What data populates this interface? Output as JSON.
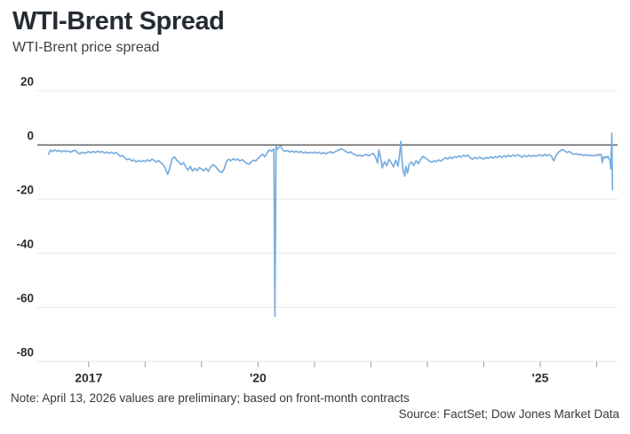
{
  "header": {
    "title": "WTI-Brent Spread",
    "subtitle": "WTI-Brent price spread"
  },
  "footer": {
    "note": "Note: April 13, 2026 values are preliminary; based on front-month contracts",
    "source": "Source: FactSet; Dow Jones Market Data"
  },
  "colors": {
    "line": "#7aadde",
    "grid": "#e7e7e7",
    "zero_line": "#1a1a1a",
    "axis_tick": "#9aa0a6",
    "tick_label": "#2e2e2e",
    "title": "#262b33"
  },
  "chart_data": {
    "type": "line",
    "title": "WTI-Brent Spread",
    "subtitle": "WTI-Brent price spread",
    "xlabel": "",
    "ylabel": "",
    "x_range": [
      2016.09,
      2026.37
    ],
    "y_range": [
      -80,
      20
    ],
    "grid": "horizontal",
    "legend": "none",
    "y_ticks": [
      20,
      0,
      -20,
      -40,
      -60,
      -80
    ],
    "y_tick_labels": [
      "20",
      "0",
      "-20",
      "-40",
      "-60",
      "-80"
    ],
    "x_ticks": [
      2017,
      2018,
      2019,
      2020,
      2021,
      2022,
      2023,
      2024,
      2025,
      2026
    ],
    "x_tick_labels": {
      "2017": "2017",
      "2020": "'20",
      "2025": "'25"
    },
    "zero_line_emphasized": true,
    "series": [
      {
        "name": "WTI-Brent price spread",
        "color": "#7aadde",
        "points": [
          [
            2016.29,
            -3.4
          ],
          [
            2016.32,
            -1.9
          ],
          [
            2016.36,
            -2.5
          ],
          [
            2016.4,
            -1.8
          ],
          [
            2016.44,
            -2.4
          ],
          [
            2016.48,
            -2.0
          ],
          [
            2016.52,
            -2.6
          ],
          [
            2016.56,
            -2.1
          ],
          [
            2016.6,
            -2.5
          ],
          [
            2016.64,
            -2.2
          ],
          [
            2016.68,
            -2.7
          ],
          [
            2016.72,
            -2.2
          ],
          [
            2016.76,
            -2.0
          ],
          [
            2016.8,
            -2.8
          ],
          [
            2016.84,
            -3.3
          ],
          [
            2016.88,
            -2.7
          ],
          [
            2016.92,
            -3.1
          ],
          [
            2016.96,
            -2.8
          ],
          [
            2017.0,
            -2.5
          ],
          [
            2017.04,
            -2.9
          ],
          [
            2017.08,
            -2.4
          ],
          [
            2017.12,
            -2.8
          ],
          [
            2017.16,
            -2.3
          ],
          [
            2017.2,
            -2.7
          ],
          [
            2017.24,
            -2.4
          ],
          [
            2017.28,
            -3.0
          ],
          [
            2017.32,
            -2.6
          ],
          [
            2017.36,
            -3.1
          ],
          [
            2017.4,
            -2.7
          ],
          [
            2017.44,
            -3.2
          ],
          [
            2017.48,
            -2.8
          ],
          [
            2017.52,
            -3.4
          ],
          [
            2017.56,
            -4.2
          ],
          [
            2017.6,
            -3.9
          ],
          [
            2017.64,
            -4.8
          ],
          [
            2017.68,
            -5.4
          ],
          [
            2017.72,
            -5.1
          ],
          [
            2017.76,
            -5.9
          ],
          [
            2017.8,
            -5.5
          ],
          [
            2017.84,
            -6.3
          ],
          [
            2017.88,
            -5.8
          ],
          [
            2017.92,
            -6.2
          ],
          [
            2017.96,
            -5.7
          ],
          [
            2018.0,
            -6.1
          ],
          [
            2018.04,
            -5.5
          ],
          [
            2018.08,
            -6.0
          ],
          [
            2018.12,
            -5.2
          ],
          [
            2018.16,
            -5.7
          ],
          [
            2018.2,
            -6.3
          ],
          [
            2018.24,
            -5.8
          ],
          [
            2018.28,
            -6.6
          ],
          [
            2018.32,
            -7.3
          ],
          [
            2018.36,
            -8.7
          ],
          [
            2018.4,
            -10.9
          ],
          [
            2018.44,
            -8.2
          ],
          [
            2018.48,
            -5.1
          ],
          [
            2018.52,
            -4.4
          ],
          [
            2018.56,
            -5.6
          ],
          [
            2018.6,
            -6.4
          ],
          [
            2018.64,
            -7.3
          ],
          [
            2018.68,
            -6.5
          ],
          [
            2018.72,
            -8.2
          ],
          [
            2018.76,
            -9.3
          ],
          [
            2018.8,
            -7.9
          ],
          [
            2018.84,
            -9.7
          ],
          [
            2018.88,
            -8.6
          ],
          [
            2018.92,
            -9.5
          ],
          [
            2018.96,
            -8.4
          ],
          [
            2019.0,
            -8.9
          ],
          [
            2019.04,
            -9.6
          ],
          [
            2019.08,
            -8.6
          ],
          [
            2019.12,
            -9.8
          ],
          [
            2019.16,
            -8.2
          ],
          [
            2019.2,
            -7.3
          ],
          [
            2019.24,
            -7.8
          ],
          [
            2019.28,
            -8.8
          ],
          [
            2019.32,
            -9.8
          ],
          [
            2019.36,
            -10.2
          ],
          [
            2019.4,
            -8.9
          ],
          [
            2019.44,
            -6.2
          ],
          [
            2019.48,
            -5.3
          ],
          [
            2019.52,
            -5.8
          ],
          [
            2019.56,
            -5.1
          ],
          [
            2019.6,
            -5.6
          ],
          [
            2019.64,
            -5.2
          ],
          [
            2019.68,
            -5.9
          ],
          [
            2019.72,
            -5.4
          ],
          [
            2019.76,
            -6.1
          ],
          [
            2019.8,
            -6.8
          ],
          [
            2019.84,
            -7.1
          ],
          [
            2019.88,
            -6.3
          ],
          [
            2019.92,
            -5.6
          ],
          [
            2019.96,
            -5.9
          ],
          [
            2020.0,
            -5.0
          ],
          [
            2020.04,
            -4.2
          ],
          [
            2020.08,
            -3.4
          ],
          [
            2020.12,
            -4.4
          ],
          [
            2020.16,
            -3.0
          ],
          [
            2020.2,
            -1.8
          ],
          [
            2020.24,
            -2.3
          ],
          [
            2020.28,
            -1.5
          ],
          [
            2020.3,
            -63.2
          ],
          [
            2020.32,
            -0.5
          ],
          [
            2020.34,
            -1.7
          ],
          [
            2020.36,
            -1.0
          ],
          [
            2020.4,
            -0.4
          ],
          [
            2020.44,
            -1.9
          ],
          [
            2020.48,
            -2.4
          ],
          [
            2020.52,
            -2.0
          ],
          [
            2020.56,
            -2.6
          ],
          [
            2020.6,
            -2.2
          ],
          [
            2020.64,
            -2.7
          ],
          [
            2020.68,
            -2.3
          ],
          [
            2020.72,
            -2.8
          ],
          [
            2020.76,
            -2.4
          ],
          [
            2020.8,
            -3.0
          ],
          [
            2020.84,
            -2.6
          ],
          [
            2020.88,
            -3.1
          ],
          [
            2020.92,
            -2.7
          ],
          [
            2020.96,
            -3.0
          ],
          [
            2021.0,
            -2.6
          ],
          [
            2021.04,
            -3.1
          ],
          [
            2021.08,
            -2.7
          ],
          [
            2021.12,
            -3.2
          ],
          [
            2021.16,
            -2.8
          ],
          [
            2021.2,
            -3.3
          ],
          [
            2021.24,
            -2.9
          ],
          [
            2021.28,
            -2.5
          ],
          [
            2021.32,
            -3.0
          ],
          [
            2021.36,
            -2.6
          ],
          [
            2021.4,
            -2.1
          ],
          [
            2021.44,
            -1.8
          ],
          [
            2021.48,
            -1.4
          ],
          [
            2021.52,
            -1.9
          ],
          [
            2021.56,
            -2.5
          ],
          [
            2021.6,
            -2.9
          ],
          [
            2021.64,
            -2.6
          ],
          [
            2021.68,
            -3.2
          ],
          [
            2021.72,
            -3.6
          ],
          [
            2021.76,
            -4.1
          ],
          [
            2021.8,
            -3.7
          ],
          [
            2021.84,
            -4.2
          ],
          [
            2021.88,
            -3.8
          ],
          [
            2021.92,
            -3.5
          ],
          [
            2021.96,
            -4.0
          ],
          [
            2022.0,
            -3.6
          ],
          [
            2022.04,
            -3.1
          ],
          [
            2022.08,
            -4.4
          ],
          [
            2022.12,
            -6.7
          ],
          [
            2022.14,
            -1.8
          ],
          [
            2022.18,
            -5.3
          ],
          [
            2022.2,
            -8.5
          ],
          [
            2022.24,
            -6.2
          ],
          [
            2022.28,
            -7.7
          ],
          [
            2022.32,
            -5.3
          ],
          [
            2022.36,
            -6.5
          ],
          [
            2022.4,
            -8.1
          ],
          [
            2022.44,
            -5.6
          ],
          [
            2022.48,
            -7.9
          ],
          [
            2022.51,
            -3.2
          ],
          [
            2022.53,
            1.3
          ],
          [
            2022.55,
            -5.2
          ],
          [
            2022.57,
            -9.3
          ],
          [
            2022.6,
            -11.5
          ],
          [
            2022.62,
            -7.9
          ],
          [
            2022.65,
            -10.4
          ],
          [
            2022.68,
            -7.1
          ],
          [
            2022.72,
            -6.3
          ],
          [
            2022.76,
            -7.6
          ],
          [
            2022.8,
            -5.8
          ],
          [
            2022.84,
            -6.9
          ],
          [
            2022.88,
            -5.4
          ],
          [
            2022.92,
            -4.2
          ],
          [
            2022.96,
            -4.7
          ],
          [
            2023.0,
            -5.3
          ],
          [
            2023.04,
            -6.0
          ],
          [
            2023.08,
            -6.4
          ],
          [
            2023.12,
            -5.8
          ],
          [
            2023.16,
            -6.2
          ],
          [
            2023.2,
            -5.5
          ],
          [
            2023.24,
            -6.0
          ],
          [
            2023.28,
            -5.3
          ],
          [
            2023.32,
            -4.7
          ],
          [
            2023.36,
            -5.2
          ],
          [
            2023.4,
            -4.5
          ],
          [
            2023.44,
            -5.0
          ],
          [
            2023.48,
            -4.3
          ],
          [
            2023.52,
            -4.7
          ],
          [
            2023.56,
            -4.0
          ],
          [
            2023.6,
            -4.5
          ],
          [
            2023.64,
            -3.8
          ],
          [
            2023.68,
            -4.3
          ],
          [
            2023.72,
            -3.7
          ],
          [
            2023.76,
            -4.8
          ],
          [
            2023.8,
            -5.3
          ],
          [
            2023.84,
            -4.6
          ],
          [
            2023.88,
            -5.1
          ],
          [
            2023.92,
            -4.5
          ],
          [
            2023.96,
            -4.9
          ],
          [
            2024.0,
            -5.2
          ],
          [
            2024.04,
            -4.6
          ],
          [
            2024.08,
            -5.0
          ],
          [
            2024.12,
            -4.4
          ],
          [
            2024.16,
            -4.9
          ],
          [
            2024.2,
            -4.3
          ],
          [
            2024.24,
            -4.7
          ],
          [
            2024.28,
            -4.1
          ],
          [
            2024.32,
            -4.6
          ],
          [
            2024.36,
            -4.0
          ],
          [
            2024.4,
            -4.5
          ],
          [
            2024.44,
            -3.8
          ],
          [
            2024.48,
            -4.3
          ],
          [
            2024.52,
            -3.7
          ],
          [
            2024.56,
            -4.2
          ],
          [
            2024.6,
            -3.6
          ],
          [
            2024.64,
            -4.1
          ],
          [
            2024.68,
            -4.5
          ],
          [
            2024.72,
            -3.9
          ],
          [
            2024.76,
            -4.4
          ],
          [
            2024.8,
            -3.8
          ],
          [
            2024.84,
            -4.3
          ],
          [
            2024.88,
            -3.9
          ],
          [
            2024.92,
            -4.2
          ],
          [
            2024.96,
            -3.9
          ],
          [
            2025.0,
            -3.7
          ],
          [
            2025.04,
            -4.1
          ],
          [
            2025.08,
            -3.5
          ],
          [
            2025.12,
            -4.0
          ],
          [
            2025.16,
            -3.6
          ],
          [
            2025.2,
            -4.2
          ],
          [
            2025.24,
            -5.9
          ],
          [
            2025.28,
            -3.9
          ],
          [
            2025.32,
            -2.8
          ],
          [
            2025.36,
            -2.1
          ],
          [
            2025.4,
            -1.7
          ],
          [
            2025.44,
            -2.3
          ],
          [
            2025.48,
            -2.8
          ],
          [
            2025.52,
            -2.4
          ],
          [
            2025.56,
            -3.1
          ],
          [
            2025.6,
            -3.5
          ],
          [
            2025.64,
            -3.2
          ],
          [
            2025.68,
            -3.7
          ],
          [
            2025.72,
            -3.4
          ],
          [
            2025.76,
            -3.9
          ],
          [
            2025.8,
            -3.6
          ],
          [
            2025.84,
            -4.0
          ],
          [
            2025.88,
            -3.7
          ],
          [
            2025.92,
            -4.1
          ],
          [
            2025.96,
            -3.8
          ],
          [
            2026.0,
            -3.9
          ],
          [
            2026.02,
            -3.5
          ],
          [
            2026.04,
            -3.8
          ],
          [
            2026.06,
            -3.4
          ],
          [
            2026.08,
            -3.7
          ],
          [
            2026.1,
            -6.6
          ],
          [
            2026.12,
            -4.4
          ],
          [
            2026.14,
            -4.9
          ],
          [
            2026.16,
            -4.3
          ],
          [
            2026.18,
            -4.7
          ],
          [
            2026.2,
            -4.2
          ],
          [
            2026.22,
            -5.1
          ],
          [
            2026.24,
            -6.0
          ],
          [
            2026.25,
            -8.9
          ],
          [
            2026.27,
            4.3
          ],
          [
            2026.28,
            -16.5
          ]
        ]
      }
    ],
    "note": "Note: April 13, 2026 values are preliminary; based on front-month contracts",
    "source": "Source: FactSet; Dow Jones Market Data"
  }
}
